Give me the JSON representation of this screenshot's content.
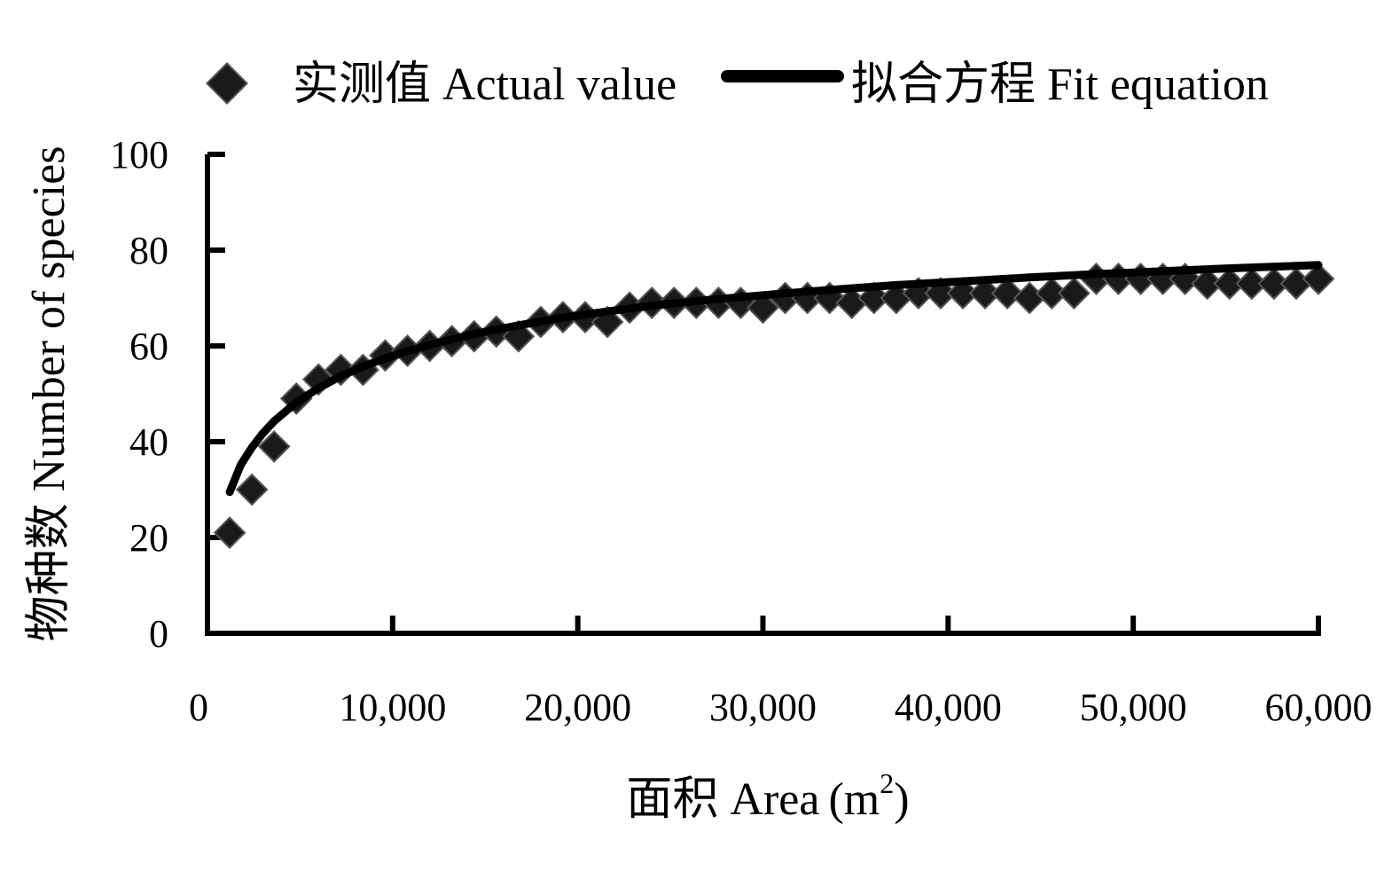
{
  "colors": {
    "marker": "#1a1a1a",
    "line": "#000000",
    "axis": "#000000"
  },
  "legend": {
    "actual_label": "实测值 Actual value",
    "fit_label": "拟合方程 Fit equation"
  },
  "axes": {
    "x_title_main": "面积 Area",
    "x_title_unit": "m",
    "x_title_sup": "2",
    "y_title": "物种数  Number of species"
  },
  "chart_data": {
    "type": "scatter",
    "xlabel": "面积 Area (m2)",
    "ylabel": "物种数  Number of species",
    "xlim": [
      0,
      60000
    ],
    "ylim": [
      0,
      100
    ],
    "x_ticks": [
      0,
      10000,
      20000,
      30000,
      40000,
      50000,
      60000
    ],
    "x_tick_labels": [
      "0",
      "10,000",
      "20,000",
      "30,000",
      "40,000",
      "50,000",
      "60,000"
    ],
    "y_ticks": [
      0,
      20,
      40,
      60,
      80,
      100
    ],
    "y_tick_labels": [
      "0",
      "20",
      "40",
      "60",
      "80",
      "100"
    ],
    "grid": false,
    "legend_position": "top",
    "series": [
      {
        "name": "实测值 Actual value",
        "type": "scatter",
        "marker": "diamond",
        "x": [
          1200,
          2400,
          3600,
          4800,
          6000,
          7200,
          8400,
          9600,
          10800,
          12000,
          13200,
          14400,
          15600,
          16800,
          18000,
          19200,
          20400,
          21600,
          22800,
          24000,
          25200,
          26400,
          27600,
          28800,
          30000,
          31200,
          32400,
          33600,
          34800,
          36000,
          37200,
          38400,
          39600,
          40800,
          42000,
          43200,
          44400,
          45600,
          46800,
          48000,
          49200,
          50400,
          51600,
          52800,
          54000,
          55200,
          56400,
          57600,
          58800,
          60000
        ],
        "y": [
          21,
          30,
          39,
          49,
          53,
          55,
          55,
          58,
          59,
          60,
          61,
          62,
          63,
          62,
          65,
          66,
          66,
          65,
          68,
          69,
          69,
          69,
          69,
          69,
          68,
          70,
          70,
          70,
          69,
          70,
          70,
          71,
          71,
          71,
          71,
          71,
          70,
          71,
          71,
          74,
          74,
          74,
          74,
          74,
          73,
          73,
          73,
          73,
          73,
          74
        ]
      },
      {
        "name": "拟合方程 Fit equation",
        "type": "line",
        "x": [
          1200,
          1800,
          2400,
          3000,
          3600,
          4800,
          6000,
          7200,
          8400,
          9600,
          10800,
          12000,
          14400,
          16800,
          19200,
          21600,
          24000,
          27000,
          30000,
          33600,
          37200,
          40800,
          44400,
          48000,
          51600,
          55200,
          58800,
          60000
        ],
        "y": [
          29.5,
          35.2,
          38.8,
          41.8,
          44.3,
          48.2,
          51.2,
          53.7,
          55.7,
          57.4,
          58.9,
          60.2,
          62.5,
          64.3,
          65.9,
          67.2,
          68.4,
          69.6,
          70.6,
          71.7,
          72.7,
          73.5,
          74.3,
          75.0,
          75.6,
          76.2,
          76.7,
          76.9
        ]
      }
    ]
  }
}
